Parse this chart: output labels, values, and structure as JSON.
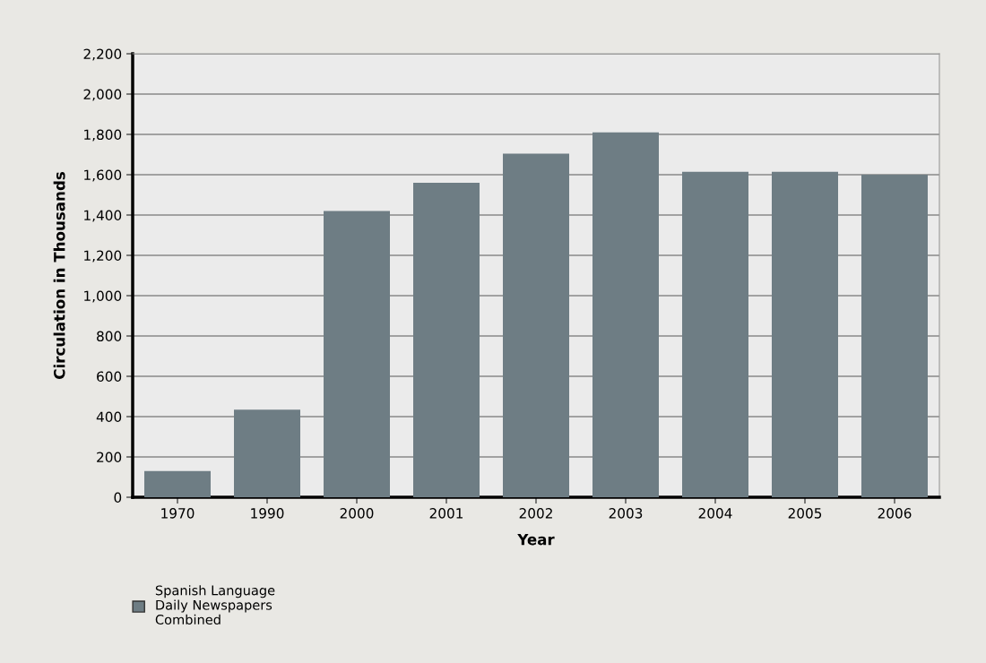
{
  "chart_data": {
    "type": "bar",
    "xlabel": "Year",
    "ylabel": "Circulation in Thousands",
    "categories": [
      "1970",
      "1990",
      "2000",
      "2001",
      "2002",
      "2003",
      "2004",
      "2005",
      "2006"
    ],
    "series": [
      {
        "name": "Spanish Language\nDaily Newspapers\nCombined",
        "color": "#6e7d84",
        "values": [
          130,
          435,
          1420,
          1560,
          1705,
          1810,
          1615,
          1615,
          1600
        ]
      }
    ],
    "ylim": [
      0,
      2200
    ],
    "yticks": [
      0,
      {
        "value": 200,
        "label": "200"
      },
      {
        "value": 400,
        "label": "400"
      },
      {
        "value": 600,
        "label": "600"
      },
      {
        "value": 800,
        "label": "800"
      },
      {
        "value": 1000,
        "label": "1,000"
      },
      {
        "value": 1200,
        "label": "1,200"
      },
      {
        "value": 1400,
        "label": "1,400"
      },
      {
        "value": 1600,
        "label": "1,600"
      },
      {
        "value": 1800,
        "label": "1,800"
      },
      {
        "value": 2000,
        "label": "2,000"
      },
      {
        "value": 2200,
        "label": "2,200"
      }
    ],
    "grid": "y",
    "legend": "bottom left"
  }
}
